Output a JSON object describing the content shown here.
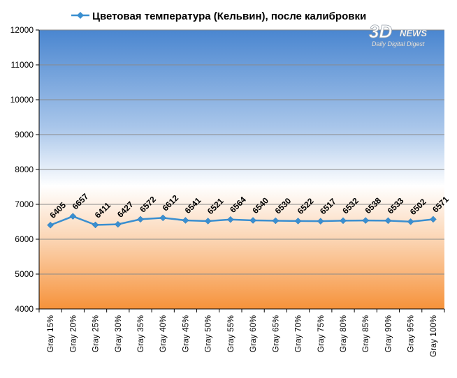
{
  "watermark": {
    "brand_main": "3D",
    "brand_news": "NEWS",
    "tagline": "Daily Digital Digest"
  },
  "colors": {
    "line": "#3a8fd0",
    "plot_top": "#4a86d0",
    "plot_mid": "#ffffff",
    "plot_bottom": "#f6923a",
    "grid": "#8a8a8a"
  },
  "chart_data": {
    "type": "line",
    "title": "Цветовая температура (Кельвин), после калибровки",
    "legend_position": "top",
    "xlabel": "",
    "ylabel": "",
    "ylim": [
      4000,
      12000
    ],
    "yticks": [
      "4000",
      "5000",
      "6000",
      "7000",
      "8000",
      "9000",
      "10000",
      "11000",
      "12000"
    ],
    "grid": true,
    "categories": [
      "Gray 15%",
      "Gray 20%",
      "Gray 25%",
      "Gray 30%",
      "Gray 35%",
      "Gray 40%",
      "Gray 45%",
      "Gray 50%",
      "Gray 55%",
      "Gray 60%",
      "Gray 65%",
      "Gray 70%",
      "Gray 75%",
      "Gray 80%",
      "Gray 85%",
      "Gray 90%",
      "Gray 95%",
      "Gray 100%"
    ],
    "series": [
      {
        "name": "Цветовая температура (Кельвин), после калибровки",
        "values": [
          6405,
          6657,
          6411,
          6427,
          6572,
          6612,
          6541,
          6521,
          6564,
          6540,
          6530,
          6522,
          6517,
          6532,
          6538,
          6533,
          6502,
          6571
        ],
        "data_labels": [
          "6405",
          "6657",
          "6411",
          "6427",
          "6572",
          "6612",
          "6541",
          "6521",
          "6564",
          "6540",
          "6530",
          "6522",
          "6517",
          "6532",
          "6538",
          "6533",
          "6502",
          "6571"
        ]
      }
    ]
  }
}
